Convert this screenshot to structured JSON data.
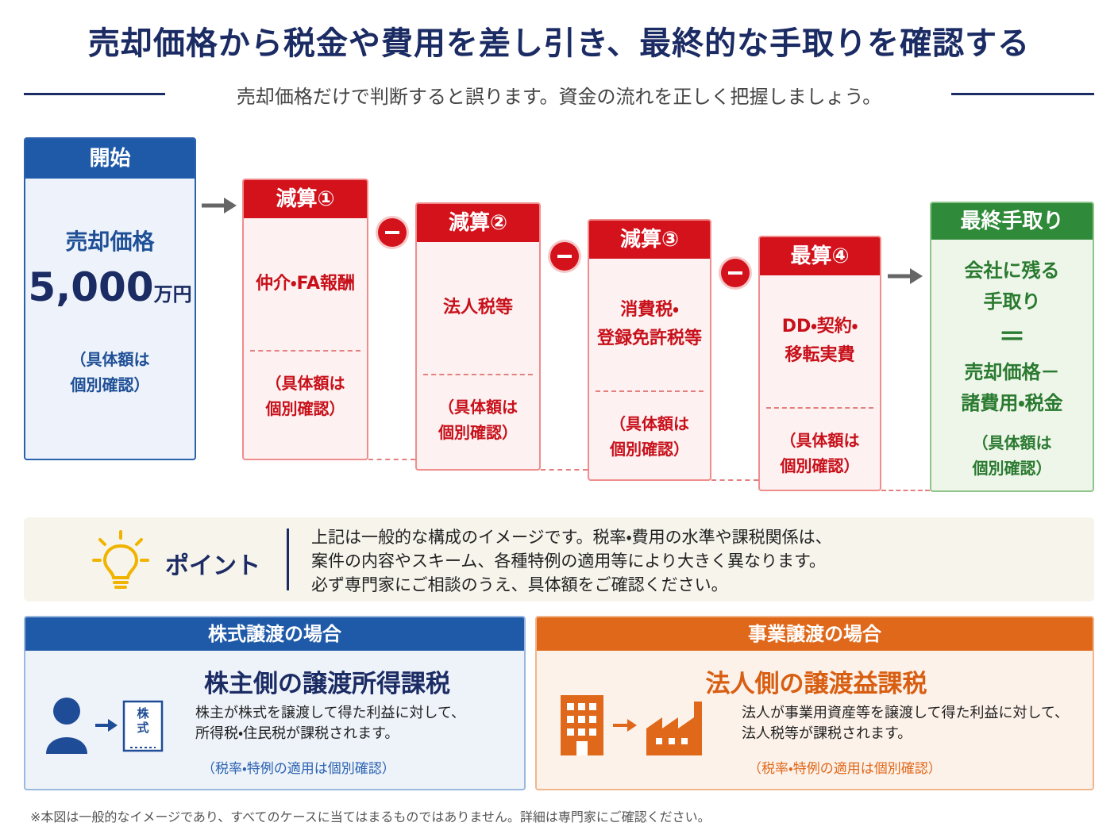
{
  "header": {
    "title": "売却価格から税金や費用を差し引き、最終的な手取りを確認する",
    "subtitle": "売却価格だけで判断すると誤ります。資金の流れを正しく把握しましょう。"
  },
  "start": {
    "label": "開始",
    "item": "売却価格",
    "amount": "5,000",
    "unit": "万円",
    "note": [
      "（具体額は",
      "個別確認）"
    ]
  },
  "steps": [
    {
      "label": "減算①",
      "item": [
        "仲介・FA報酬"
      ],
      "note": [
        "（具体額は",
        "個別確認）"
      ]
    },
    {
      "label": "減算②",
      "item": [
        "法人税等"
      ],
      "note": [
        "（具体額は",
        "個別確認）"
      ]
    },
    {
      "label": "減算③",
      "item": [
        "消費税・",
        "登録免許税等"
      ],
      "note": [
        "（具体額は",
        "個別確認）"
      ]
    },
    {
      "label": "最算④",
      "item": [
        "DD・契約・",
        "移転実費"
      ],
      "note": [
        "（具体額は",
        "個別確認）"
      ]
    }
  ],
  "final": {
    "label": "最終手取り",
    "item": [
      "会社に残る",
      "手取り"
    ],
    "equals": "＝",
    "formula": [
      "売却価格－",
      "諸費用・税金"
    ],
    "note": [
      "（具体額は",
      "個別確認）"
    ]
  },
  "point": {
    "label": "ポイント",
    "lines": [
      "上記は一般的な構成のイメージです。税率・費用の水準や課税関係は、",
      "案件の内容やスキーム、各種特例の適用等により大きく異なります。",
      "必ず専門家にご相談のうえ、具体額をご確認ください。"
    ]
  },
  "cases": [
    {
      "header": "株式譲渡の場合",
      "title": "株主側の譲渡所得課税",
      "icon_text": [
        "株",
        "式"
      ],
      "body": [
        "株主が株式を譲渡して得た利益に対して、",
        "所得税・住民税が課税されます。"
      ],
      "note": "（税率・特例の適用は個別確認）"
    },
    {
      "header": "事業譲渡の場合",
      "title": "法人側の譲渡益課税",
      "body": [
        "法人が事業用資産等を譲渡して得た利益に対して、",
        "法人税等が課税されます。"
      ],
      "note": "（税率・特例の適用は個別確認）"
    }
  ],
  "footnote": "※本図は一般的なイメージであり、すべてのケースに当てはまるものではありません。詳細は専門家にご確認ください。"
}
